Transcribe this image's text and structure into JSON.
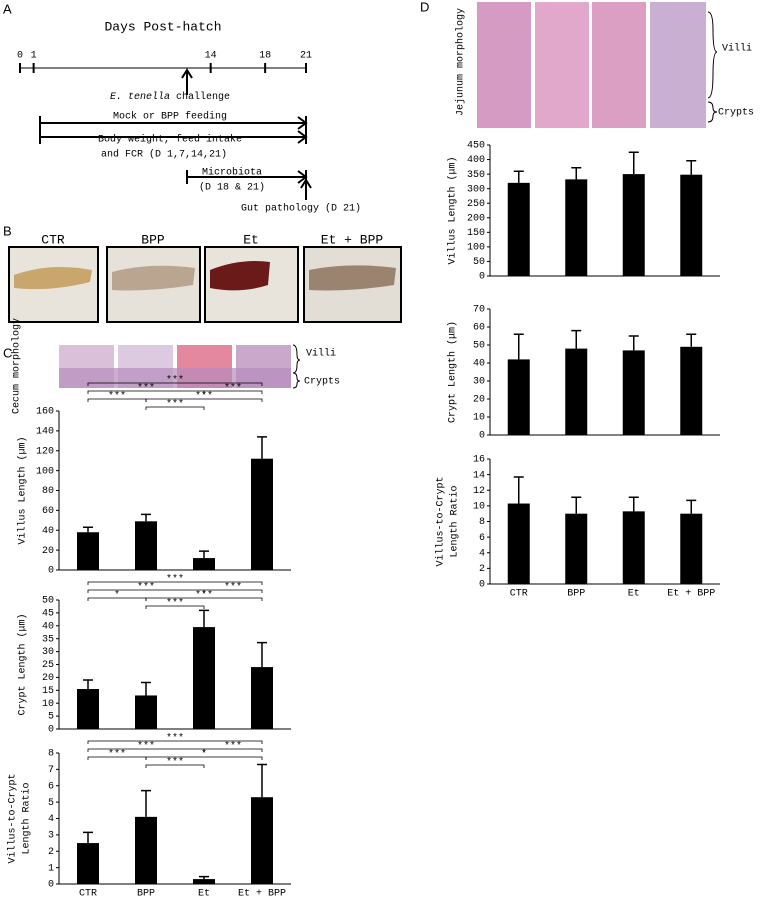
{
  "panel_letters": [
    "A",
    "B",
    "C",
    "D"
  ],
  "timeline": {
    "title": "Days Post-hatch",
    "days": [
      0,
      1,
      14,
      18,
      21
    ],
    "day_range": [
      0,
      21
    ],
    "challenge_species": "E. tenella",
    "challenge_label": "challenge",
    "feeding": "Mock or BPP feeding",
    "body_weight": [
      "Body weight, feed intake",
      "and FCR (D 1,7,14,21)"
    ],
    "microbiota": [
      "Microbiota",
      "(D 18 & 21)"
    ],
    "gut_pathology": "Gut pathology (D 21)"
  },
  "photos": {
    "labels": [
      "CTR",
      "BPP",
      "Et",
      "Et + BPP"
    ]
  },
  "cecum_images": {
    "label": "Cecum morphology",
    "villi": "Villi",
    "crypts": "Crypts"
  },
  "jejunum_images": {
    "label": "Jejunum morphology",
    "villi": "Villi",
    "crypts": "Crypts"
  },
  "chart_data": [
    {
      "type": "bar",
      "ylabel": "Villus Length (µm)",
      "values": [
        38,
        49,
        12,
        112
      ],
      "errors": [
        5,
        7,
        7,
        22
      ],
      "ylim": [
        0,
        160
      ],
      "yticks": [
        0,
        20,
        40,
        60,
        80,
        100,
        120,
        140,
        160
      ],
      "color": "#000000",
      "comparisons": [
        {
          "groups": [
            "CTR",
            "Et + BPP"
          ],
          "label": "***"
        },
        {
          "groups": [
            "CTR",
            "Et"
          ],
          "label": "***"
        },
        {
          "groups": [
            "Et",
            "Et + BPP"
          ],
          "label": "***"
        },
        {
          "groups": [
            "CTR",
            "BPP"
          ],
          "label": "***"
        },
        {
          "groups": [
            "BPP",
            "Et + BPP"
          ],
          "label": "***"
        },
        {
          "groups": [
            "BPP",
            "Et"
          ],
          "label": "***"
        }
      ]
    },
    {
      "type": "bar",
      "ylabel": "Crypt Length (μm)",
      "values": [
        15.5,
        13,
        39.5,
        24
      ],
      "errors": [
        3.5,
        5,
        6.5,
        9.5
      ],
      "ylim": [
        0,
        50
      ],
      "yticks": [
        0,
        5,
        10,
        15,
        20,
        25,
        30,
        35,
        40,
        45,
        50
      ],
      "color": "#000000",
      "comparisons": [
        {
          "groups": [
            "CTR",
            "Et + BPP"
          ],
          "label": "***"
        },
        {
          "groups": [
            "CTR",
            "Et"
          ],
          "label": "***"
        },
        {
          "groups": [
            "Et",
            "Et + BPP"
          ],
          "label": "***"
        },
        {
          "groups": [
            "CTR",
            "BPP"
          ],
          "label": "*"
        },
        {
          "groups": [
            "BPP",
            "Et + BPP"
          ],
          "label": "***"
        },
        {
          "groups": [
            "BPP",
            "Et"
          ],
          "label": "***"
        }
      ]
    },
    {
      "type": "bar",
      "ylabel": [
        "Villus-to-Crypt",
        "Length Ratio"
      ],
      "categories": [
        "CTR",
        "BPP",
        "Et",
        "Et + BPP"
      ],
      "values": [
        2.5,
        4.1,
        0.3,
        5.3
      ],
      "errors": [
        0.65,
        1.6,
        0.15,
        2
      ],
      "ylim": [
        0,
        8
      ],
      "yticks": [
        0,
        1,
        2,
        3,
        4,
        5,
        6,
        7,
        8
      ],
      "color": "#000000",
      "comparisons": [
        {
          "groups": [
            "CTR",
            "Et + BPP"
          ],
          "label": "***"
        },
        {
          "groups": [
            "CTR",
            "Et"
          ],
          "label": "***"
        },
        {
          "groups": [
            "Et",
            "Et + BPP"
          ],
          "label": "***"
        },
        {
          "groups": [
            "CTR",
            "BPP"
          ],
          "label": "***"
        },
        {
          "groups": [
            "BPP",
            "Et + BPP"
          ],
          "label": "*"
        },
        {
          "groups": [
            "BPP",
            "Et"
          ],
          "label": "***"
        }
      ]
    },
    {
      "type": "bar",
      "ylabel": "Villus Length (μm)",
      "values": [
        320,
        332,
        350,
        348
      ],
      "errors": [
        40,
        40,
        75,
        48
      ],
      "ylim": [
        0,
        450
      ],
      "yticks": [
        0,
        50,
        100,
        150,
        200,
        250,
        300,
        350,
        400,
        450
      ],
      "color": "#000000"
    },
    {
      "type": "bar",
      "ylabel": "Crypt Length (μm)",
      "values": [
        42,
        48,
        47,
        49
      ],
      "errors": [
        14,
        10,
        8,
        7
      ],
      "ylim": [
        0,
        70
      ],
      "yticks": [
        0,
        10,
        20,
        30,
        40,
        50,
        60,
        70
      ],
      "color": "#000000"
    },
    {
      "type": "bar",
      "ylabel": [
        "Villus-to-Crypt",
        "Length Ratio"
      ],
      "categories": [
        "CTR",
        "BPP",
        "Et",
        "Et + BPP"
      ],
      "values": [
        10.3,
        9,
        9.3,
        9
      ],
      "errors": [
        3.4,
        2.1,
        1.8,
        1.7
      ],
      "ylim": [
        0,
        16
      ],
      "yticks": [
        0,
        2,
        4,
        6,
        8,
        10,
        12,
        14,
        16
      ],
      "color": "#000000"
    }
  ]
}
